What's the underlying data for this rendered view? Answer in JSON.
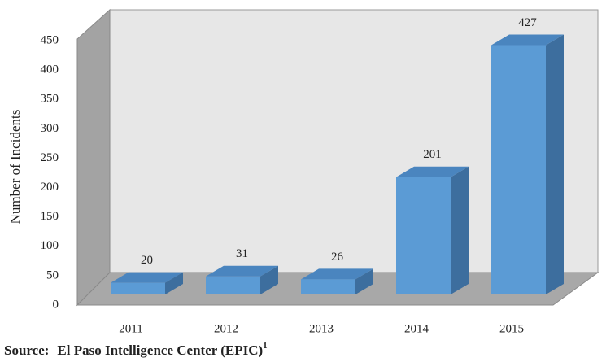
{
  "chart_data": {
    "type": "bar",
    "y_label": "Number of Incidents",
    "categories": [
      "2011",
      "2012",
      "2013",
      "2014",
      "2015"
    ],
    "values": [
      20,
      31,
      26,
      201,
      427
    ],
    "color": "#5b9bd5",
    "ylim": [
      0,
      450
    ],
    "yticks": [
      0,
      50,
      100,
      150,
      200,
      250,
      300,
      350,
      400,
      450
    ],
    "source_label": "Source:",
    "source": "El Paso Intelligence Center (EPIC)",
    "source_note": "1"
  }
}
